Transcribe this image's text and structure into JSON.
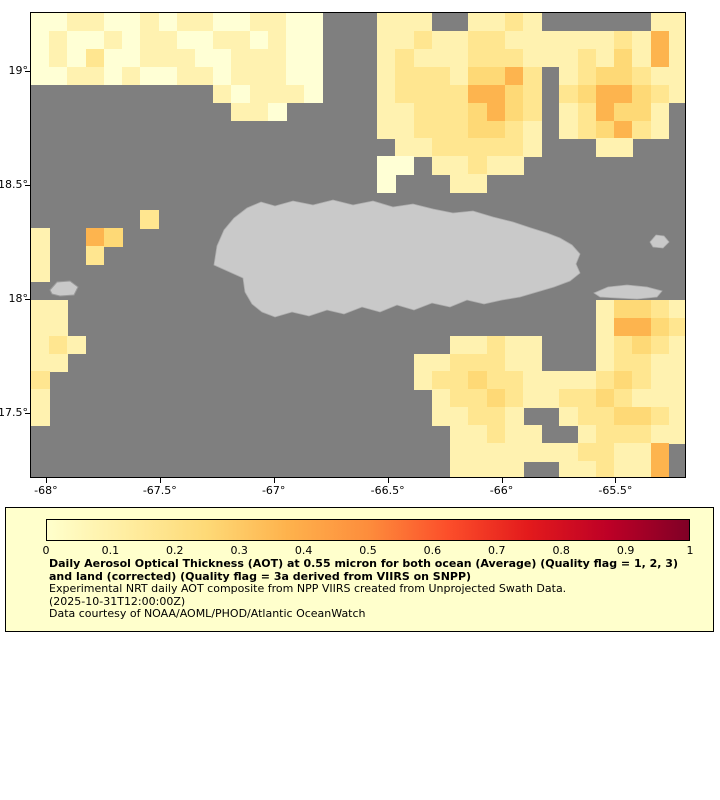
{
  "figure": {
    "kind": "geographic-heatmap",
    "region": "Puerto Rico and surrounding Caribbean waters"
  },
  "colors": {
    "no_data": "#7f7f7f",
    "land": "#c9c9c9",
    "land_outline": "#aeaeae",
    "page_background": "#ffffff",
    "legend_background": "#ffffcc",
    "axis_text": "#000000"
  },
  "axes": {
    "x": {
      "ticks": [
        "-68°",
        "-67.5°",
        "-67°",
        "-66.5°",
        "-66°",
        "-65.5°"
      ],
      "tick_values": [
        -68,
        -67.5,
        -67,
        -66.5,
        -66,
        -65.5
      ],
      "min": -68.07,
      "max": -65.19
    },
    "y": {
      "ticks": [
        "19°",
        "18.5°",
        "18°",
        "17.5°"
      ],
      "tick_values": [
        19,
        18.5,
        18,
        17.5
      ],
      "min": 17.215,
      "max": 19.26
    }
  },
  "legend": {
    "title": "Daily Aerosol Optical Thickness (AOT) at 0.55 micron for both ocean (Average) (Quality flag = 1, 2, 3) and land (corrected) (Quality flag = 3a derived from VIIRS on SNPP)",
    "subtitle": "Experimental NRT daily AOT composite from NPP VIIRS created from Unprojected Swath Data.",
    "timestamp": "(2025-10-31T12:00:00Z)",
    "credit": "Data courtesy of NOAA/AOML/PHOD/Atlantic OceanWatch",
    "colorbar": {
      "tick_labels": [
        "0",
        "0.1",
        "0.2",
        "0.3",
        "0.4",
        "0.5",
        "0.6",
        "0.7",
        "0.8",
        "0.9",
        "1"
      ],
      "tick_values": [
        0,
        0.1,
        0.2,
        0.3,
        0.4,
        0.5,
        0.6,
        0.7,
        0.8,
        0.9,
        1
      ],
      "range": [
        0,
        1
      ],
      "gradient_stops": [
        "#ffffcc",
        "#ffeda0",
        "#fed976",
        "#feb24c",
        "#fd8d3c",
        "#fc4e2a",
        "#e31a1c",
        "#bd0026",
        "#800026"
      ]
    }
  },
  "chart_data": {
    "type": "heatmap",
    "title": "Daily Aerosol Optical Thickness (AOT) at 0.55 micron",
    "xlabel": "",
    "ylabel": "",
    "x_range": [
      -68.07,
      -65.19
    ],
    "y_range": [
      17.215,
      19.26
    ],
    "colorbar_range": [
      0,
      1
    ],
    "grid_cols": 36,
    "grid_rows": 26,
    "cell_note": "Each character is one grid cell; row 0 is the north edge (lat 19.26), last row is lat 17.215; '.' means no data (gray)",
    "value_key": {
      ".": null,
      "a": 0.05,
      "b": 0.1,
      "c": 0.15,
      "d": 0.2,
      "e": 0.25
    },
    "color_key": {
      "a": "#ffffd5",
      "b": "#fff2b0",
      "c": "#ffe690",
      "d": "#fed976",
      "e": "#fdb44e"
    },
    "rows": [
      "aabbaababbaabbaa...bbb..bbcb......bb",
      "abaababbaabbabaa...bbcbbccbbbbbbcbeb",
      "abacaabbbaabbbaa...bcbbbcccbbbcbdbeb",
      "aabbabaabbabbbaa...bcccbddec.bcddcbb",
      "..........babbba...bcccceedc.cdeedcb",
      "...........bba.....bbcccdedc.bceddb.",
      "...................bbcccddcb.bcdecb.",
      "....................bbcccccb...bb...",
      "...................aa.bbcbb.........",
      "...................a...bb...........",
      "....................................",
      "......c.............................",
      "b..ed...............................",
      "b..c................................",
      "b...................................",
      "....................................",
      "bb.............................bddcb",
      "bb.............................beedc",
      "bcb....................bbcbb...bcdcb",
      "bb...................bbcccbb...bccbb",
      "c....................bccdccbbbbcdcbb",
      "b.....................bccdcbbccdcbbb",
      "b.....................bbccb..bccddcb",
      ".......................bbcbb..bcccbb",
      ".......................bbbbbbbccbbe.",
      ".......................bbbb..bbcbbe."
    ]
  }
}
